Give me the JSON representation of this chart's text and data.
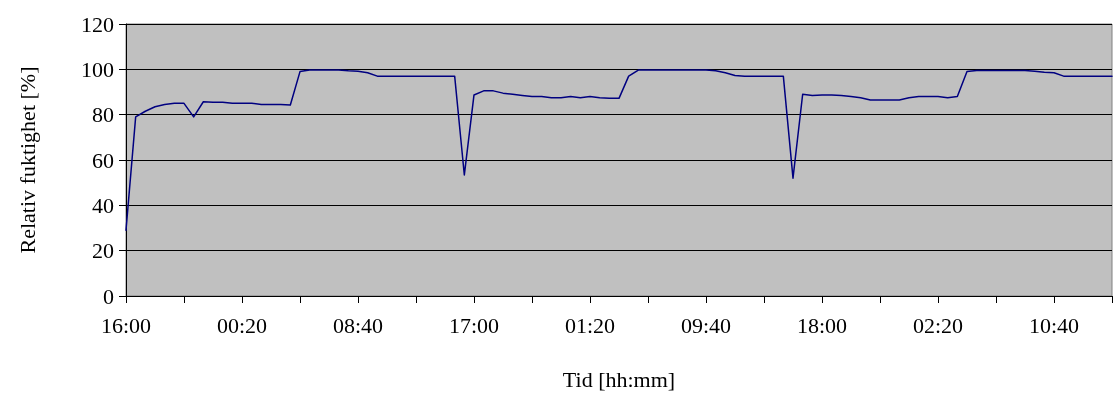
{
  "chart_data": {
    "type": "line",
    "xlabel": "Tid [hh:mm]",
    "ylabel": "Relativ fuktighet [%]",
    "categories": [
      "16:00",
      null,
      null,
      null,
      null,
      null,
      null,
      null,
      null,
      null,
      null,
      null,
      "00:20",
      null,
      null,
      null,
      null,
      null,
      null,
      null,
      null,
      null,
      null,
      null,
      "08:40",
      null,
      null,
      null,
      null,
      null,
      null,
      null,
      null,
      null,
      null,
      null,
      "17:00",
      null,
      null,
      null,
      null,
      null,
      null,
      null,
      null,
      null,
      null,
      null,
      "01:20",
      null,
      null,
      null,
      null,
      null,
      null,
      null,
      null,
      null,
      null,
      null,
      "09:40",
      null,
      null,
      null,
      null,
      null,
      null,
      null,
      null,
      null,
      null,
      null,
      "18:00",
      null,
      null,
      null,
      null,
      null,
      null,
      null,
      null,
      null,
      null,
      null,
      "02:20",
      null,
      null,
      null,
      null,
      null,
      null,
      null,
      null,
      null,
      null,
      null,
      "10:40",
      null,
      null,
      null,
      null,
      null,
      null
    ],
    "series": [
      {
        "color": "#000080",
        "values": [
          29,
          79,
          81.5,
          83.5,
          84.5,
          85,
          85,
          79,
          85.7,
          85.5,
          85.5,
          85,
          85,
          85,
          84.5,
          84.5,
          84.5,
          84.3,
          99,
          99.7,
          99.7,
          99.7,
          99.7,
          99.4,
          99.2,
          98.5,
          97,
          97,
          97,
          97,
          97,
          97,
          97,
          97,
          97,
          53.4,
          88.7,
          90.5,
          90.5,
          89.5,
          89,
          88.5,
          88,
          88,
          87.5,
          87.5,
          88,
          87.5,
          88,
          87.5,
          87.2,
          87.2,
          97,
          99.7,
          99.7,
          99.7,
          99.7,
          99.7,
          99.7,
          99.7,
          99.7,
          99.4,
          98.5,
          97.3,
          97,
          97,
          97,
          97,
          97,
          52,
          89,
          88.5,
          88.7,
          88.7,
          88.5,
          88,
          87.5,
          86.5,
          86.5,
          86.5,
          86.5,
          87.5,
          88,
          88,
          88,
          87.5,
          88,
          99,
          99.5,
          99.5,
          99.5,
          99.5,
          99.5,
          99.5,
          99.2,
          98.7,
          98.5,
          97,
          97,
          97,
          97,
          97,
          97
        ]
      }
    ],
    "ylim": [
      0,
      120
    ],
    "yticks": [
      0,
      20,
      40,
      60,
      80,
      100,
      120
    ],
    "grid": "y",
    "marker": "none",
    "line_style": "solid"
  }
}
